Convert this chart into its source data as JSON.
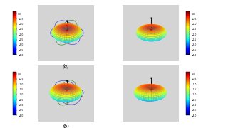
{
  "background_color": "#ffffff",
  "fig_bg": "#c8c8c8",
  "colormap": "jet_r",
  "subplot_labels": [
    "(a)",
    "(b)"
  ],
  "label_fontsize": 5,
  "colorbar_fontsize": 3,
  "configs": [
    {
      "elev": 28,
      "azim": -50,
      "tilt": 0.0,
      "asym": 0.0,
      "show_circles": true,
      "row": 0,
      "col": 0
    },
    {
      "elev": 22,
      "azim": -45,
      "tilt": 0.0,
      "asym": 0.0,
      "show_circles": false,
      "row": 0,
      "col": 1
    },
    {
      "elev": 22,
      "azim": -55,
      "tilt": -0.12,
      "asym": 0.35,
      "show_circles": true,
      "row": 1,
      "col": 0
    },
    {
      "elev": 18,
      "azim": -50,
      "tilt": -0.08,
      "asym": 0.35,
      "show_circles": false,
      "row": 1,
      "col": 1
    }
  ]
}
